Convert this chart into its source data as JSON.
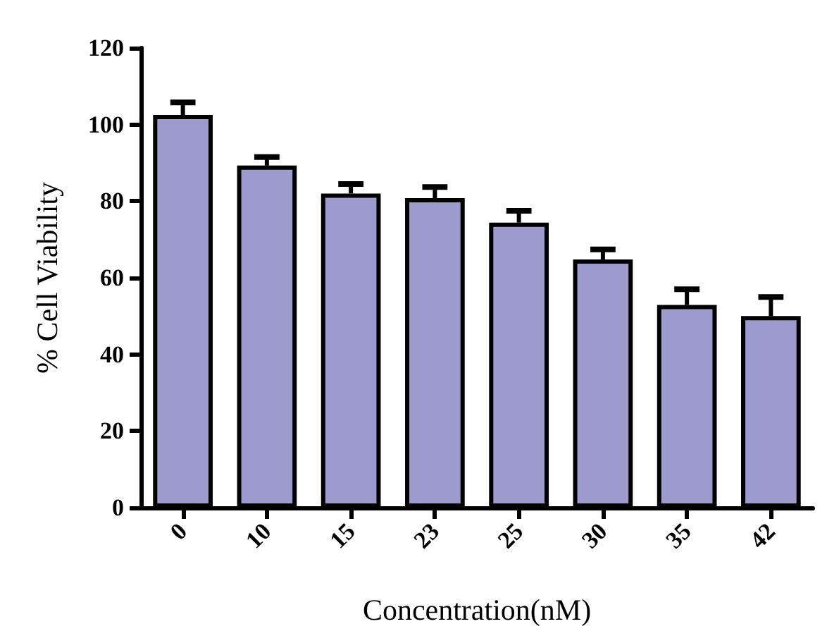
{
  "chart_data": {
    "type": "bar",
    "xlabel": "Concentration(nM)",
    "ylabel": "% Cell Viability",
    "categories": [
      "0",
      "10",
      "15",
      "23",
      "25",
      "30",
      "35",
      "42"
    ],
    "values": [
      102.5,
      89.3,
      82,
      80.8,
      74.4,
      64.8,
      52.9,
      50
    ],
    "errors": [
      [
        102.5,
        105.8
      ],
      [
        89.3,
        91.5
      ],
      [
        82,
        84.5
      ],
      [
        80.8,
        83.7
      ],
      [
        74.4,
        77.5
      ],
      [
        64.8,
        67.4
      ],
      [
        52.9,
        57
      ],
      [
        50,
        55
      ]
    ],
    "color": "#9d9bcd",
    "ylim": [
      0,
      120
    ],
    "yticks": [
      0,
      20,
      40,
      60,
      80,
      100,
      120
    ]
  }
}
